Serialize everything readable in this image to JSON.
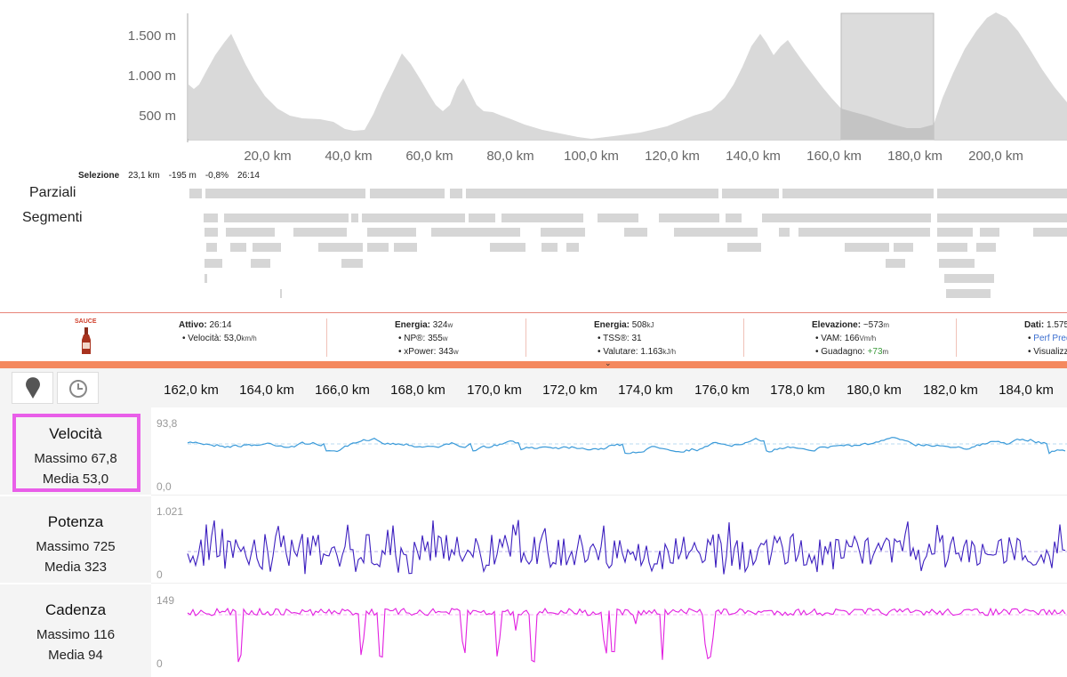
{
  "elevation": {
    "y_ticks": [
      "1.500 m",
      "1.000 m",
      "500 m"
    ],
    "x_ticks": [
      "20,0 km",
      "40,0 km",
      "60,0 km",
      "80,0 km",
      "100,0 km",
      "120,0 km",
      "140,0 km",
      "160,0 km",
      "180,0 km",
      "200,0 km"
    ]
  },
  "selection": {
    "label": "Selezione",
    "distance": "23,1 km",
    "elevation": "-195 m",
    "grade": "-0,8%",
    "time": "26:14"
  },
  "rows": {
    "splits": "Parziali",
    "segments": "Segmenti"
  },
  "stats": {
    "logo_text": "SAUCE",
    "active": {
      "title": "Attivo:",
      "value": "26:14",
      "speed_label": "• Velocità:",
      "speed_value": "53,0",
      "speed_unit": "km/h"
    },
    "energy_w": {
      "title": "Energia:",
      "value": "324",
      "unit": "w",
      "np_label": "• NP®:",
      "np_value": "355",
      "np_unit": "w",
      "xp_label": "• xPower:",
      "xp_value": "343",
      "xp_unit": "w"
    },
    "energy_kj": {
      "title": "Energia:",
      "value": "508",
      "unit": "kJ",
      "tss_label": "• TSS®:",
      "tss_value": "31",
      "val_label": "• Valutare:",
      "val_value": "1.163",
      "val_unit": "kJ/h"
    },
    "elevation": {
      "title": "Elevazione:",
      "value": "~573",
      "unit": "m",
      "vam_label": "• VAM:",
      "vam_value": "166",
      "vam_unit": "Vm/h",
      "gain_label": "• Guadagno:",
      "gain_value": "+73",
      "gain_unit": "m"
    },
    "data": {
      "title": "Dati:",
      "value": "1.575",
      "link1": "Perf Pred",
      "link2": "Visualizza"
    },
    "colors": {
      "orange": "#f4895f",
      "green": "#3a9a3a",
      "blue": "#3c6fd0"
    }
  },
  "detail_x_ticks": [
    "162,0 km",
    "164,0 km",
    "166,0 km",
    "168,0 km",
    "170,0 km",
    "172,0 km",
    "174,0 km",
    "176,0 km",
    "178,0 km",
    "180,0 km",
    "182,0 km",
    "184,0 km"
  ],
  "icons": {
    "map": "map-pin-icon",
    "time": "clock-icon"
  },
  "panels": [
    {
      "title": "Velocità",
      "max": "Massimo 67,8",
      "avg": "Media 53,0",
      "axis_top": "93,8",
      "axis_bottom": "0,0",
      "color": "#3a9ad9"
    },
    {
      "title": "Potenza",
      "max": "Massimo 725",
      "avg": "Media 323",
      "axis_top": "1.021",
      "axis_bottom": "0",
      "color": "#3c1fbf"
    },
    {
      "title": "Cadenza",
      "max": "Massimo 116",
      "avg": "Media 94",
      "axis_top": "149",
      "axis_bottom": "0",
      "color": "#e21fe0"
    }
  ],
  "highlight_color": "#e95ee9"
}
